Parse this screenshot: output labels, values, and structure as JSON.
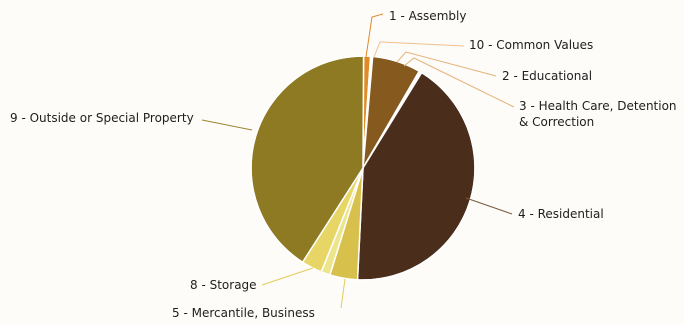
{
  "chart_data": {
    "type": "pie",
    "title": "",
    "legend": "none",
    "slices": [
      {
        "label": "1 - Assembly",
        "value": 1.0,
        "color": "#e08a28"
      },
      {
        "label": "10 - Common Values",
        "value": 0.3,
        "color": "#ffffff"
      },
      {
        "label": "2 - Educational",
        "value": 7.0,
        "color": "#86591f"
      },
      {
        "label": "3 - Health Care, Detention",
        "label2": "& Correction",
        "value": 0.4,
        "color": "#ffffff"
      },
      {
        "label": "4 - Residential",
        "value": 42.0,
        "color": "#4b2d1b"
      },
      {
        "label": "5 - Mercantile, Business",
        "value": 4.0,
        "color": "#d7c04c"
      },
      {
        "label": "",
        "value": 1.3,
        "color": "#ece58c"
      },
      {
        "label": "8 - Storage",
        "value": 3.0,
        "color": "#e7d566"
      },
      {
        "label": "9 - Outside or Special Property",
        "value": 41.0,
        "color": "#8f7a24"
      }
    ]
  }
}
